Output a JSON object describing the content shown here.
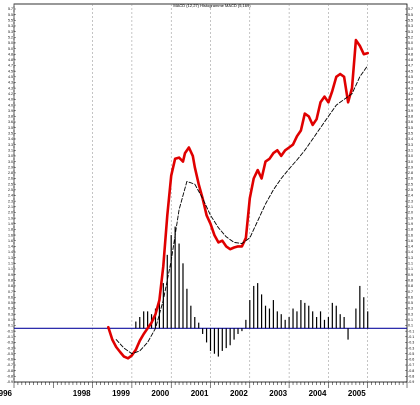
{
  "chart_data": {
    "type": "line",
    "title": "MACD (12,27)  Histogramme MACD (5,169)",
    "x_range": [
      1996.0,
      2006.0
    ],
    "x_tick_labels": [
      "1996",
      "1998",
      "1999",
      "2000",
      "2001",
      "2002",
      "2003",
      "2004",
      "2005"
    ],
    "x_tick_values": [
      1996,
      1998,
      1999,
      2000,
      2001,
      2002,
      2003,
      2004,
      2005
    ],
    "ylim": [
      -0.95,
      5.65
    ],
    "y_tick_step": 0.1,
    "zero_line": 0,
    "grid": "vertical dashed at year boundaries",
    "series": [
      {
        "role": "macd-line",
        "color": "#e00000",
        "x": [
          1998.4,
          1998.5,
          1998.6,
          1998.7,
          1998.8,
          1998.9,
          1999.0,
          1999.1,
          1999.2,
          1999.3,
          1999.4,
          1999.5,
          1999.6,
          1999.7,
          1999.8,
          1999.9,
          2000.0,
          2000.1,
          2000.2,
          2000.3,
          2000.35,
          2000.45,
          2000.55,
          2000.6,
          2000.7,
          2000.8,
          2000.9,
          2001.0,
          2001.1,
          2001.2,
          2001.3,
          2001.4,
          2001.5,
          2001.6,
          2001.7,
          2001.8,
          2001.9,
          2002.0,
          2002.1,
          2002.2,
          2002.3,
          2002.4,
          2002.5,
          2002.6,
          2002.7,
          2002.8,
          2002.9,
          2003.0,
          2003.1,
          2003.2,
          2003.3,
          2003.4,
          2003.5,
          2003.6,
          2003.7,
          2003.8,
          2003.9,
          2004.0,
          2004.1,
          2004.2,
          2004.3,
          2004.4,
          2004.5,
          2004.6,
          2004.7,
          2004.8,
          2004.9,
          2005.0
        ],
        "values": [
          0.02,
          -0.2,
          -0.33,
          -0.42,
          -0.5,
          -0.53,
          -0.48,
          -0.38,
          -0.22,
          -0.1,
          0.0,
          0.1,
          0.25,
          0.5,
          1.1,
          2.0,
          2.7,
          3.0,
          3.02,
          2.95,
          3.1,
          3.2,
          3.05,
          2.85,
          2.55,
          2.3,
          2.0,
          1.85,
          1.65,
          1.52,
          1.55,
          1.45,
          1.4,
          1.43,
          1.45,
          1.45,
          1.6,
          2.3,
          2.65,
          2.8,
          2.65,
          2.95,
          3.0,
          3.1,
          3.15,
          3.05,
          3.15,
          3.2,
          3.25,
          3.4,
          3.5,
          3.8,
          3.75,
          3.6,
          3.7,
          4.0,
          4.1,
          4.0,
          4.2,
          4.45,
          4.5,
          4.45,
          4.0,
          4.25,
          5.1,
          5.0,
          4.85,
          4.87
        ]
      },
      {
        "role": "signal-line",
        "color": "#000000",
        "style": "dashed",
        "x": [
          1998.6,
          1998.8,
          1999.0,
          1999.2,
          1999.4,
          1999.6,
          1999.8,
          2000.0,
          2000.2,
          2000.4,
          2000.6,
          2000.8,
          2001.0,
          2001.2,
          2001.4,
          2001.6,
          2001.8,
          2002.0,
          2002.2,
          2002.4,
          2002.6,
          2002.8,
          2003.0,
          2003.2,
          2003.4,
          2003.6,
          2003.8,
          2004.0,
          2004.2,
          2004.4,
          2004.6,
          2004.8,
          2005.0
        ],
        "values": [
          -0.2,
          -0.35,
          -0.45,
          -0.4,
          -0.25,
          0.0,
          0.5,
          1.2,
          2.1,
          2.6,
          2.55,
          2.3,
          2.0,
          1.78,
          1.62,
          1.52,
          1.5,
          1.6,
          1.9,
          2.2,
          2.45,
          2.65,
          2.82,
          2.98,
          3.15,
          3.35,
          3.55,
          3.75,
          3.95,
          4.05,
          4.15,
          4.45,
          4.65
        ]
      },
      {
        "role": "histogram",
        "type": "bar",
        "color": "#000000",
        "x": [
          1999.1,
          1999.2,
          1999.3,
          1999.4,
          1999.5,
          1999.6,
          1999.7,
          1999.8,
          1999.9,
          2000.0,
          2000.1,
          2000.2,
          2000.3,
          2000.4,
          2000.5,
          2000.6,
          2000.7,
          2000.8,
          2000.9,
          2001.0,
          2001.1,
          2001.2,
          2001.3,
          2001.4,
          2001.5,
          2001.6,
          2001.7,
          2001.8,
          2001.9,
          2002.0,
          2002.1,
          2002.2,
          2002.3,
          2002.4,
          2002.5,
          2002.6,
          2002.7,
          2002.8,
          2002.9,
          2003.0,
          2003.1,
          2003.2,
          2003.3,
          2003.4,
          2003.5,
          2003.6,
          2003.7,
          2003.8,
          2003.9,
          2004.0,
          2004.1,
          2004.2,
          2004.3,
          2004.4,
          2004.5,
          2004.6,
          2004.7,
          2004.8,
          2004.9,
          2005.0
        ],
        "values": [
          0.12,
          0.2,
          0.3,
          0.3,
          0.25,
          0.35,
          0.55,
          0.8,
          1.3,
          1.65,
          1.8,
          1.5,
          1.15,
          0.7,
          0.4,
          0.2,
          0.1,
          -0.1,
          -0.25,
          -0.4,
          -0.45,
          -0.5,
          -0.4,
          -0.35,
          -0.3,
          -0.2,
          -0.1,
          -0.05,
          0.15,
          0.5,
          0.75,
          0.8,
          0.6,
          0.4,
          0.35,
          0.5,
          0.3,
          0.25,
          0.15,
          0.2,
          0.35,
          0.3,
          0.5,
          0.45,
          0.4,
          0.3,
          0.2,
          0.3,
          0.15,
          0.2,
          0.45,
          0.4,
          0.25,
          0.2,
          -0.2,
          0.0,
          0.35,
          0.75,
          0.55,
          0.3
        ]
      }
    ]
  }
}
